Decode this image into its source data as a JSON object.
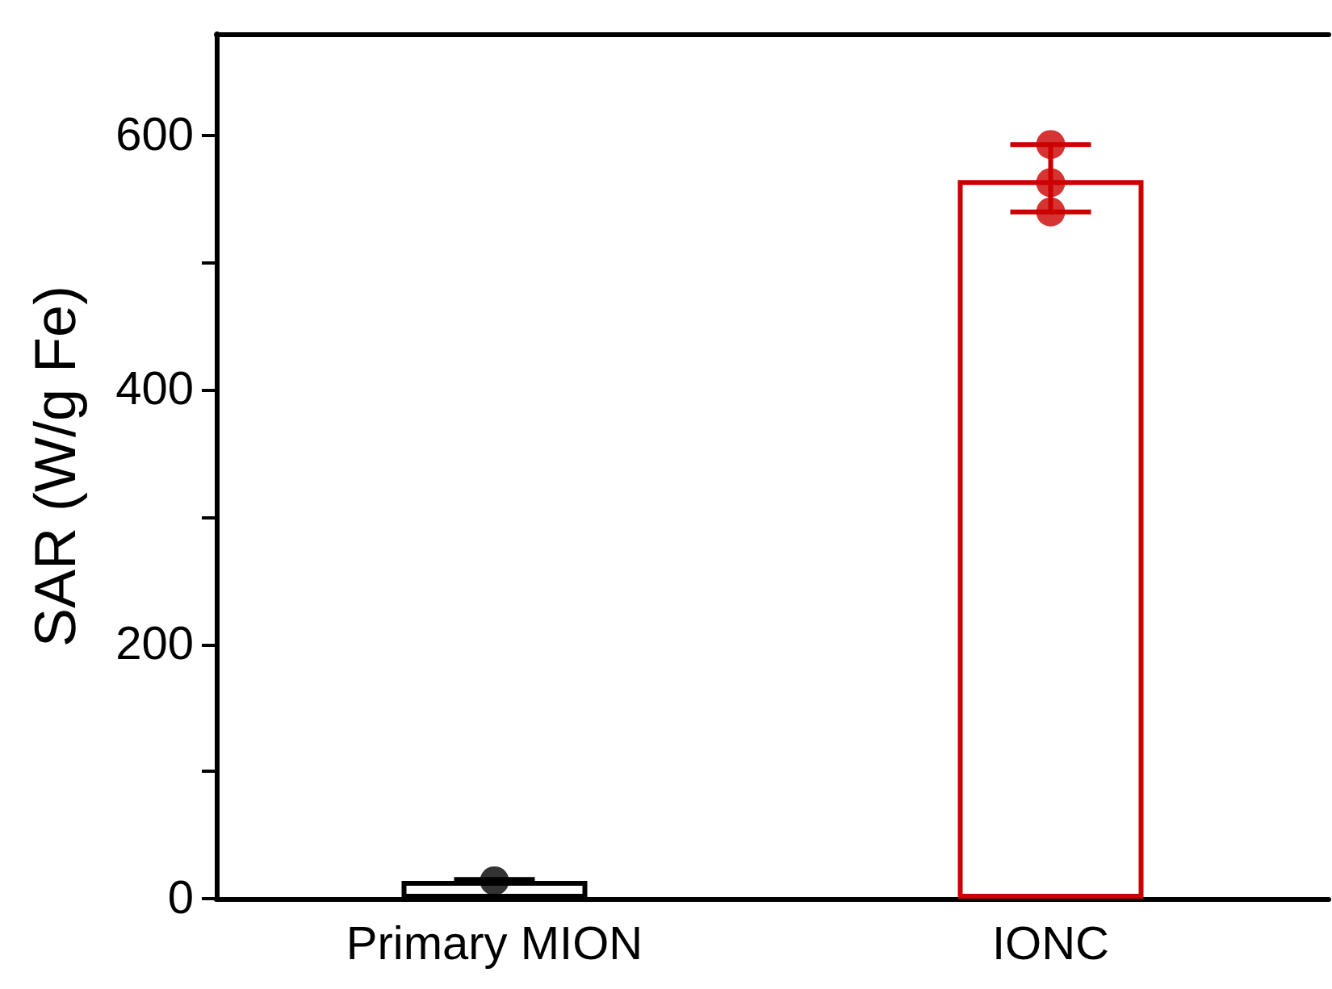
{
  "chart_data": {
    "type": "bar",
    "ylabel": "SAR (W/g Fe)",
    "categories": [
      "Primary MION",
      "IONC"
    ],
    "series": [
      {
        "colors": [
          "#000000",
          "#cc0000"
        ],
        "values": [
          14,
          565
        ],
        "errors": [
          [
            13,
            15
          ],
          [
            540,
            593
          ]
        ]
      },
      {
        "type": "scatter",
        "x": [
          "Primary MION",
          "Primary MION",
          "Primary MION",
          "IONC",
          "IONC",
          "IONC"
        ],
        "colors": [
          "#000000",
          "#000000",
          "#000000",
          "#cc0000",
          "#cc0000",
          "#cc0000"
        ],
        "values": [
          null,
          null,
          14,
          593,
          563,
          540
        ]
      }
    ],
    "ylim": [
      0,
      680
    ],
    "yticks": [
      0,
      {
        "value": 100,
        "label": null
      },
      200,
      {
        "value": 300,
        "label": null
      },
      400,
      {
        "value": 500,
        "label": null
      },
      600
    ],
    "marker": "circle",
    "grid": false
  }
}
